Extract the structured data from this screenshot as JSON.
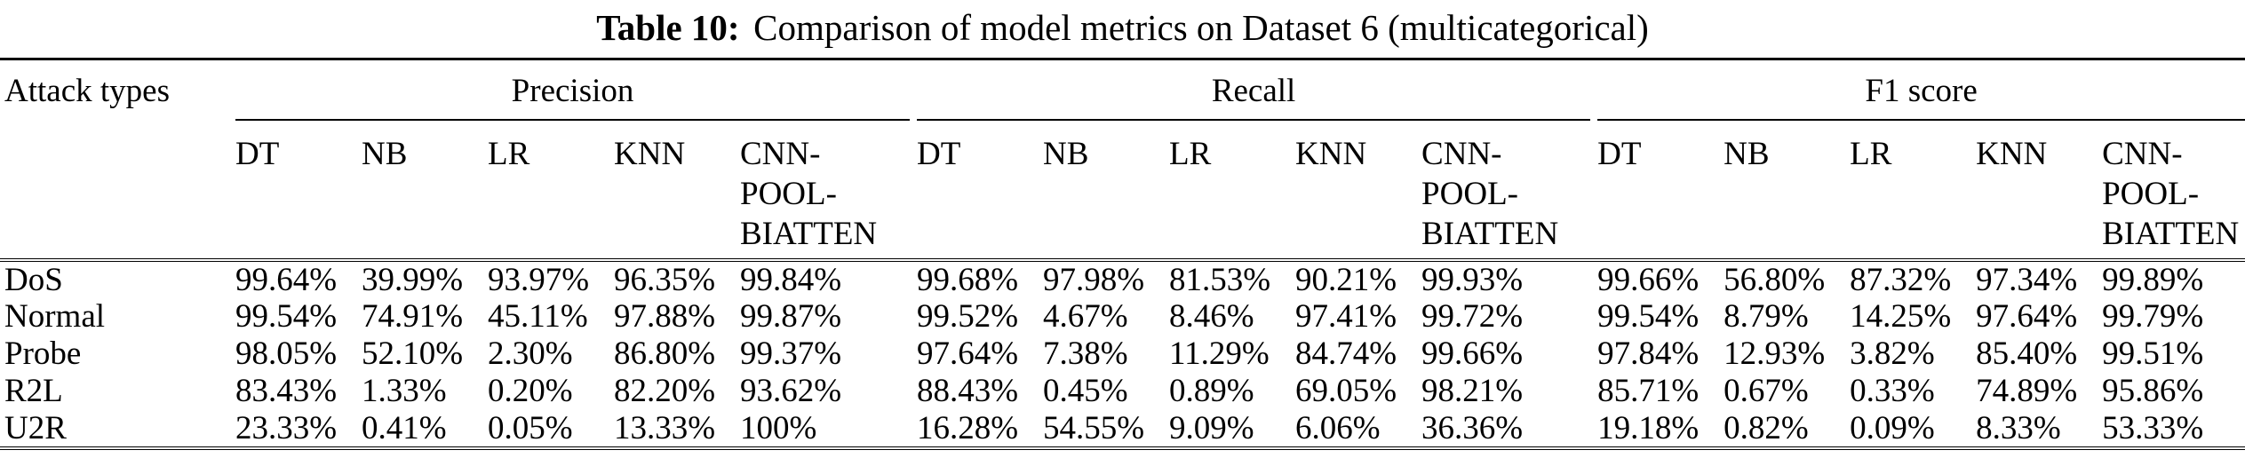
{
  "title": {
    "label": "Table 10:",
    "text": "Comparison of model metrics on Dataset 6 (multicategorical)"
  },
  "colors": {
    "text": "#000000",
    "background": "#ffffff"
  },
  "table": {
    "row_header": "Attack types",
    "groups": [
      {
        "label": "Precision",
        "models": [
          "DT",
          "NB",
          "LR",
          "KNN",
          "CNN-\nPOOL-\nBIATTEN"
        ]
      },
      {
        "label": "Recall",
        "models": [
          "DT",
          "NB",
          "LR",
          "KNN",
          "CNN-\nPOOL-\nBIATTEN"
        ]
      },
      {
        "label": "F1 score",
        "models": [
          "DT",
          "NB",
          "LR",
          "KNN",
          "CNN-\nPOOL-\nBIATTEN"
        ]
      }
    ],
    "rows": [
      {
        "attack": "DoS",
        "precision": [
          "99.64%",
          "39.99%",
          "93.97%",
          "96.35%",
          "99.84%"
        ],
        "recall": [
          "99.68%",
          "97.98%",
          "81.53%",
          "90.21%",
          "99.93%"
        ],
        "f1": [
          "99.66%",
          "56.80%",
          "87.32%",
          "97.34%",
          "99.89%"
        ]
      },
      {
        "attack": "Normal",
        "precision": [
          "99.54%",
          "74.91%",
          "45.11%",
          "97.88%",
          "99.87%"
        ],
        "recall": [
          "99.52%",
          "4.67%",
          "8.46%",
          "97.41%",
          "99.72%"
        ],
        "f1": [
          "99.54%",
          "8.79%",
          "14.25%",
          "97.64%",
          "99.79%"
        ]
      },
      {
        "attack": "Probe",
        "precision": [
          "98.05%",
          "52.10%",
          "2.30%",
          "86.80%",
          "99.37%"
        ],
        "recall": [
          "97.64%",
          "7.38%",
          "11.29%",
          "84.74%",
          "99.66%"
        ],
        "f1": [
          "97.84%",
          "12.93%",
          "3.82%",
          "85.40%",
          "99.51%"
        ]
      },
      {
        "attack": "R2L",
        "precision": [
          "83.43%",
          "1.33%",
          "0.20%",
          "82.20%",
          "93.62%"
        ],
        "recall": [
          "88.43%",
          "0.45%",
          "0.89%",
          "69.05%",
          "98.21%"
        ],
        "f1": [
          "85.71%",
          "0.67%",
          "0.33%",
          "74.89%",
          "95.86%"
        ]
      },
      {
        "attack": "U2R",
        "precision": [
          "23.33%",
          "0.41%",
          "0.05%",
          "13.33%",
          "100%"
        ],
        "recall": [
          "16.28%",
          "54.55%",
          "9.09%",
          "6.06%",
          "36.36%"
        ],
        "f1": [
          "19.18%",
          "0.82%",
          "0.09%",
          "8.33%",
          "53.33%"
        ]
      }
    ]
  }
}
